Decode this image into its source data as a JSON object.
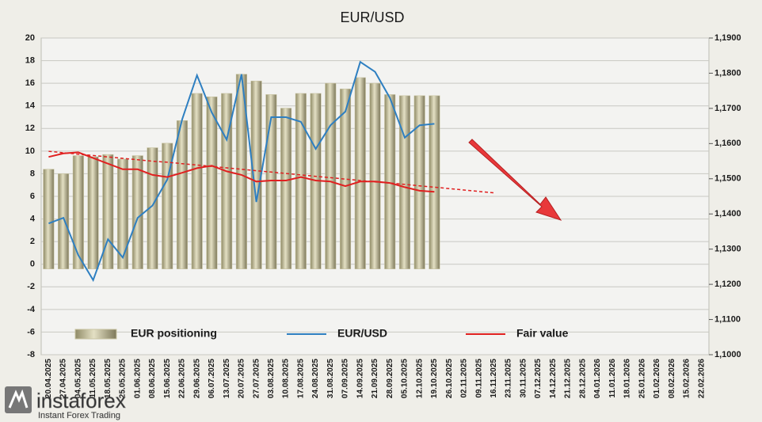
{
  "chart_data": {
    "type": "bar",
    "title": "EUR/USD",
    "categories": [
      "20.04.2025",
      "27.04.2025",
      "04.05.2025",
      "11.05.2025",
      "18.05.2025",
      "25.05.2025",
      "01.06.2025",
      "08.06.2025",
      "15.06.2025",
      "22.06.2025",
      "29.06.2025",
      "06.07.2025",
      "13.07.2025",
      "20.07.2025",
      "27.07.2025",
      "03.08.2025",
      "10.08.2025",
      "17.08.2025",
      "24.08.2025",
      "31.08.2025",
      "07.09.2025",
      "14.09.2025",
      "21.09.2025",
      "28.09.2025",
      "05.10.2025",
      "12.10.2025",
      "19.10.2025",
      "26.10.2025",
      "02.11.2025",
      "09.11.2025",
      "16.11.2025",
      "23.11.2025",
      "30.11.2025",
      "07.12.2025",
      "14.12.2025",
      "21.12.2025",
      "28.12.2025",
      "04.01.2026",
      "11.01.2026",
      "18.01.2026",
      "25.01.2026",
      "01.02.2026",
      "08.02.2026",
      "15.02.2026",
      "22.02.2026"
    ],
    "series": [
      {
        "name": "EUR positioning",
        "type": "bar",
        "color": "#c9c4a2",
        "values": [
          8.4,
          8.0,
          9.6,
          9.5,
          9.7,
          9.3,
          9.6,
          10.3,
          10.7,
          12.7,
          15.1,
          14.8,
          15.1,
          16.8,
          16.2,
          15.0,
          13.8,
          15.1,
          15.1,
          16.0,
          15.5,
          16.5,
          16.0,
          15.0,
          14.9,
          14.9,
          14.9,
          null,
          null,
          null,
          null,
          null,
          null,
          null,
          null,
          null,
          null,
          null,
          null,
          null,
          null,
          null,
          null,
          null,
          null
        ]
      },
      {
        "name": "EUR/USD",
        "type": "line",
        "axis": "y2",
        "color": "#2e7fc1",
        "values": [
          1.1373,
          1.1389,
          1.1283,
          1.1212,
          1.1328,
          1.1276,
          1.1389,
          1.1424,
          1.1498,
          1.1669,
          1.1794,
          1.1688,
          1.1611,
          1.1797,
          1.1434,
          1.1675,
          1.1675,
          1.1662,
          1.1585,
          1.1652,
          1.1691,
          1.1832,
          1.1804,
          1.173,
          1.1617,
          1.1652,
          1.1656,
          null,
          null,
          null,
          null,
          null,
          null,
          null,
          null,
          null,
          null,
          null,
          null,
          null,
          null,
          null,
          null,
          null,
          null
        ]
      },
      {
        "name": "Fair value",
        "type": "line",
        "axis": "y2",
        "color": "#e02020",
        "values": [
          1.1562,
          1.1572,
          1.1575,
          1.1559,
          1.1543,
          1.1527,
          1.1527,
          1.1511,
          1.1505,
          1.1517,
          1.153,
          1.1537,
          1.1521,
          1.1511,
          1.1492,
          1.1495,
          1.1495,
          1.1505,
          1.1495,
          1.1492,
          1.1479,
          1.1492,
          1.1492,
          1.1488,
          1.1476,
          1.1466,
          1.1463,
          null,
          null,
          null,
          null,
          null,
          null,
          null,
          null,
          null,
          null,
          null,
          null,
          null,
          null,
          null,
          null,
          null,
          null
        ]
      },
      {
        "type": "line",
        "axis": "y2",
        "color": "#e02020",
        "dash": true,
        "values": [
          1.1578,
          1.1574,
          1.157,
          1.1566,
          1.1562,
          1.1558,
          1.1554,
          1.155,
          1.1547,
          1.1543,
          1.1539,
          1.1535,
          1.1531,
          1.1527,
          1.1523,
          1.1519,
          1.1515,
          1.1511,
          1.1507,
          1.1503,
          1.1499,
          1.1495,
          1.1491,
          1.1488,
          1.1484,
          1.148,
          1.1476,
          1.1472,
          1.1468,
          1.1464,
          1.146,
          null,
          null,
          null,
          null,
          null,
          null,
          null,
          null,
          null,
          null,
          null,
          null,
          null,
          null
        ]
      }
    ],
    "ylim": [
      -8,
      20
    ],
    "yticks": [
      -8,
      -6,
      -4,
      -2,
      0,
      2,
      4,
      6,
      8,
      10,
      12,
      14,
      16,
      18,
      20
    ],
    "y2lim": [
      1.1,
      1.19
    ],
    "y2ticks": [
      {
        "value": 1.1,
        "label": "1,1000"
      },
      {
        "value": 1.11,
        "label": "1,1100"
      },
      {
        "value": 1.12,
        "label": "1,1200"
      },
      {
        "value": 1.13,
        "label": "1,1300"
      },
      {
        "value": 1.14,
        "label": "1,1400"
      },
      {
        "value": 1.15,
        "label": "1,1500"
      },
      {
        "value": 1.16,
        "label": "1,1600"
      },
      {
        "value": 1.17,
        "label": "1,1700"
      },
      {
        "value": 1.18,
        "label": "1,1800"
      },
      {
        "value": 1.19,
        "label": "1,1900"
      }
    ],
    "grid": true,
    "legend": "bottom",
    "watermark": {
      "brand": "instaforex",
      "tagline": "Instant Forex Trading"
    }
  }
}
